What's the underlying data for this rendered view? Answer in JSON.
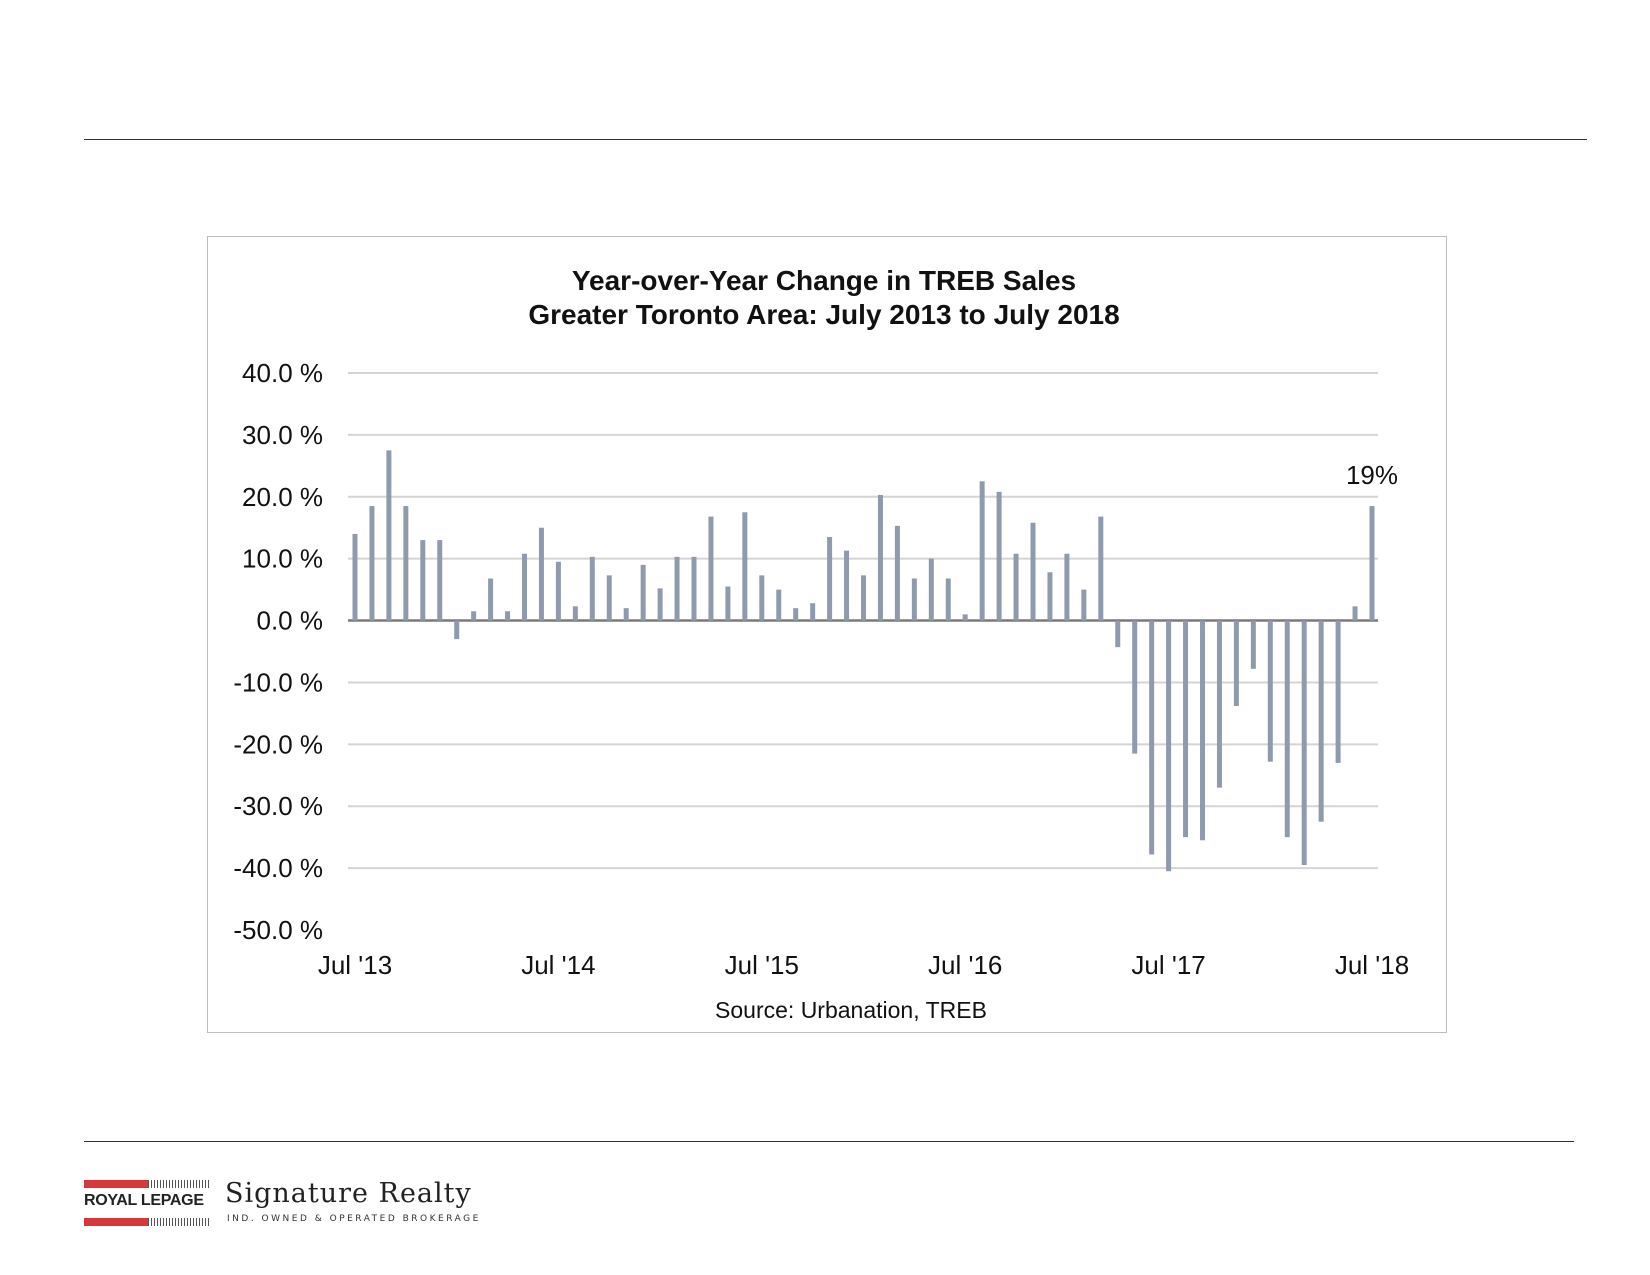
{
  "chart_data": {
    "type": "bar",
    "title": "Year-over-Year Change in TREB Sales",
    "subtitle": "Greater Toronto Area: July 2013 to July 2018",
    "source": "Source: Urbanation, TREB",
    "ylim": [
      -50,
      40
    ],
    "yticks": [
      40,
      30,
      20,
      10,
      0,
      -10,
      -20,
      -30,
      -40,
      -50
    ],
    "ytick_labels": [
      "40.0 %",
      "30.0 %",
      "20.0 %",
      "10.0 %",
      "0.0 %",
      "-10.0 %",
      "-20.0 %",
      "-30.0 %",
      "-40.0 %",
      "-50.0 %"
    ],
    "xtick_labels": [
      "Jul '13",
      "Jul '14",
      "Jul '15",
      "Jul '16",
      "Jul '17",
      "Jul '18"
    ],
    "grid": true,
    "bar_color": "#8f9bad",
    "annotation": {
      "text": "19%",
      "index": 60
    },
    "values": [
      14.0,
      18.5,
      27.5,
      18.5,
      13.0,
      13.0,
      -3.0,
      1.5,
      6.8,
      1.5,
      10.8,
      15.0,
      9.5,
      2.3,
      10.3,
      7.3,
      2.0,
      9.0,
      5.2,
      10.3,
      10.3,
      16.8,
      5.5,
      17.5,
      7.3,
      5.0,
      2.0,
      2.8,
      13.5,
      11.3,
      7.3,
      20.3,
      15.3,
      6.8,
      10.0,
      6.8,
      1.0,
      22.5,
      20.8,
      10.8,
      15.8,
      7.8,
      10.8,
      5.0,
      16.8,
      -4.3,
      -21.5,
      -37.8,
      -40.5,
      -35.0,
      -35.5,
      -27.0,
      -13.8,
      -7.8,
      -22.8,
      -35.0,
      -39.5,
      -32.5,
      -23.0,
      2.3,
      18.5
    ]
  },
  "footer": {
    "brand": "ROYAL LEPAGE",
    "company": "Signature Realty",
    "tagline": "IND. OWNED & OPERATED BROKERAGE"
  }
}
